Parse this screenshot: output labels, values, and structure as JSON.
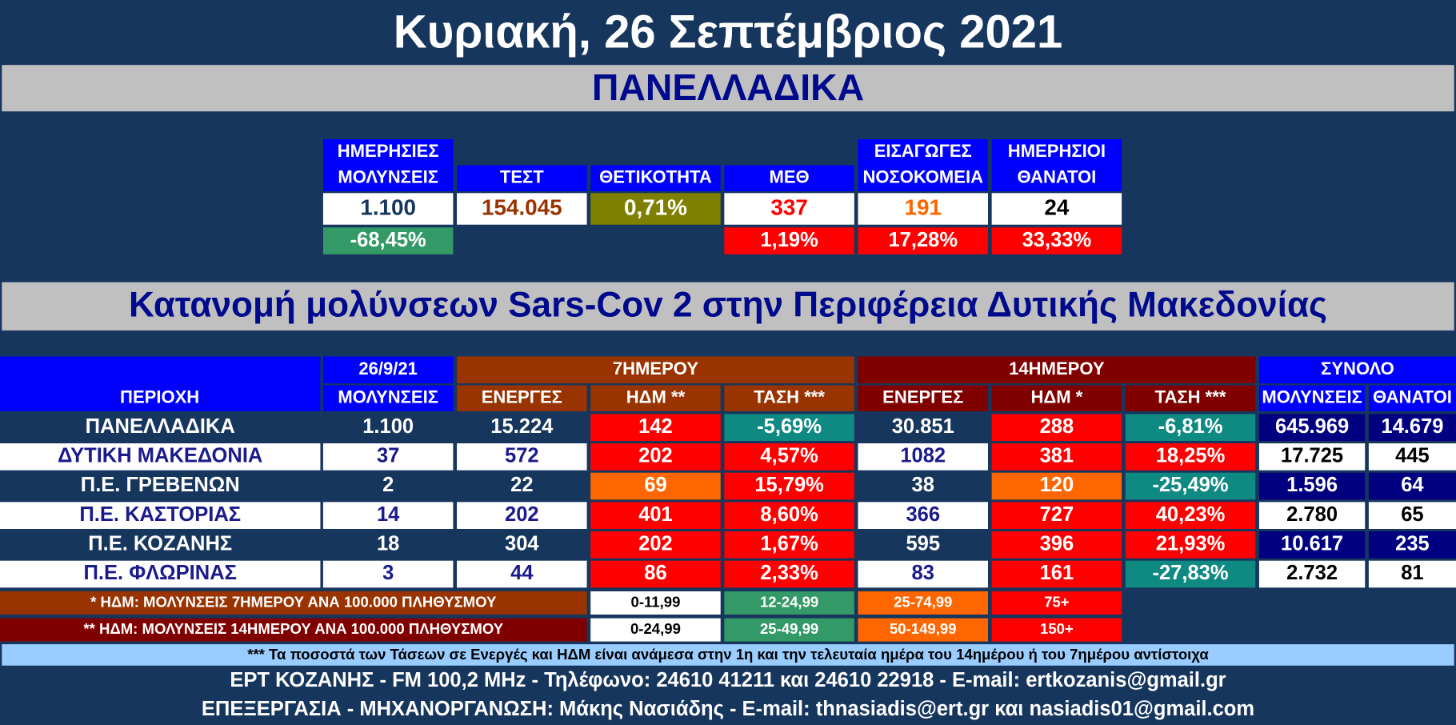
{
  "header": {
    "title": "Κυριακή, 26 Σεπτέμβριος 2021",
    "section": "ΠΑΝΕΛΛΑΔΙΚΑ"
  },
  "national": {
    "headers": [
      [
        "ΗΜΕΡΗΣΙΕΣ",
        "ΜΟΛΥΝΣΕΙΣ"
      ],
      [
        "ΤΕΣΤ"
      ],
      [
        "ΘΕΤΙΚΟΤΗΤΑ"
      ],
      [
        "ΜΕΘ"
      ],
      [
        "ΕΙΣΑΓΩΓΕΣ",
        "ΝΟΣΟΚΟΜΕΙΑ"
      ],
      [
        "ΗΜΕΡΗΣΙΟΙ",
        "ΘΑΝΑΤΟΙ"
      ]
    ],
    "values": [
      "1.100",
      "154.045",
      "0,71%",
      "337",
      "191",
      "24"
    ],
    "changes": [
      "-68,45%",
      null,
      null,
      "1,19%",
      "17,28%",
      "33,33%"
    ]
  },
  "region": {
    "title": "Κατανομή μολύνσεων Sars-Cov 2 στην Περιφέρεια Δυτικής Μακεδονίας",
    "group_headers": [
      "ΠΕΡΙΟΧΗ",
      "26/9/21",
      "7ΗΜΕΡΟΥ",
      "14ΗΜΕΡΟΥ",
      "ΣΥΝΟΛΟ"
    ],
    "column_headers": [
      "ΜΟΛΥΝΣΕΙΣ",
      "ΕΝΕΡΓΕΣ",
      "ΗΔΜ **",
      "ΤΑΣΗ ***",
      "ΕΝΕΡΓΕΣ",
      "ΗΔΜ *",
      "ΤΑΣΗ ***",
      "ΜΟΛΥΝΣΕΙΣ",
      "ΘΑΝΑΤΟΙ"
    ],
    "rows": [
      [
        "ΠΑΝΕΛΛΑΔΙΚΑ",
        "1.100",
        "15.224",
        "142",
        "-5,69%",
        "30.851",
        "288",
        "-6,81%",
        "645.969",
        "14.679"
      ],
      [
        "ΔΥΤΙΚΗ ΜΑΚΕΔΟΝΙΑ",
        "37",
        "572",
        "202",
        "4,57%",
        "1082",
        "381",
        "18,25%",
        "17.725",
        "445"
      ],
      [
        "Π.Ε. ΓΡΕΒΕΝΩΝ",
        "2",
        "22",
        "69",
        "15,79%",
        "38",
        "120",
        "-25,49%",
        "1.596",
        "64"
      ],
      [
        "Π.Ε. ΚΑΣΤΟΡΙΑΣ",
        "14",
        "202",
        "401",
        "8,60%",
        "366",
        "727",
        "40,23%",
        "2.780",
        "65"
      ],
      [
        "Π.Ε. ΚΟΖΑΝΗΣ",
        "18",
        "304",
        "202",
        "1,67%",
        "595",
        "396",
        "21,93%",
        "10.617",
        "235"
      ],
      [
        "Π.Ε. ΦΛΩΡΙΝΑΣ",
        "3",
        "44",
        "86",
        "2,33%",
        "83",
        "161",
        "-27,83%",
        "2.732",
        "81"
      ]
    ],
    "legend": [
      {
        "label": "* ΗΔΜ: ΜΟΛΥΝΣΕΙΣ 7ΗΜΕΡΟΥ ΑΝΑ 100.000 ΠΛΗΘΥΣΜΟΥ",
        "ranges": [
          "0-11,99",
          "12-24,99",
          "25-74,99",
          "75+"
        ]
      },
      {
        "label": "** ΗΔΜ: ΜΟΛΥΝΣΕΙΣ 14ΗΜΕΡΟΥ ΑΝΑ 100.000 ΠΛΗΘΥΣΜΟΥ",
        "ranges": [
          "0-24,99",
          "25-49,99",
          "50-149,99",
          "150+"
        ]
      }
    ],
    "footnote": "*** Τα ποσοστά των Τάσεων σε Ενεργές και ΗΔΜ είναι ανάμεσα στην 1η και την τελευταία ημέρα του 14ημέρου ή του 7ημέρου αντίστοιχα"
  },
  "footer": [
    "ΕΡΤ ΚΟΖΑΝΗΣ - FM 100,2 MHz - Τηλέφωνο:  24610 41211 και 24610 22918 - E-mail: ertkozanis@gmail.gr",
    "ΕΠΕΞΕΡΓΑΣΙΑ  -  ΜΗΧΑΝΟΡΓΑΝΩΣΗ: Μάκης Νασιάδης  -   E-mail: thnasiadis@ert.gr και nasiadis01@gmail.com"
  ]
}
